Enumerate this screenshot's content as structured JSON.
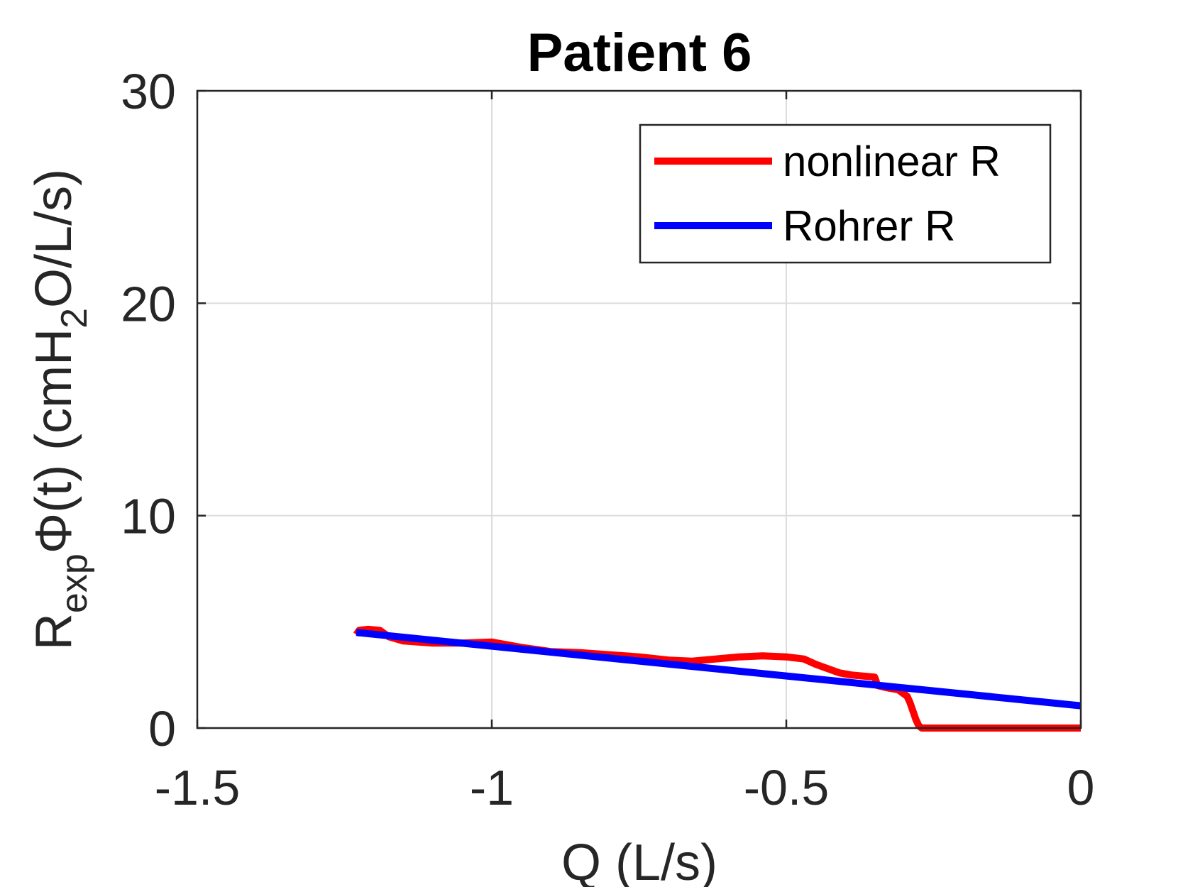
{
  "chart_data": {
    "type": "line",
    "title": "Patient 6",
    "xlabel": "Q (L/s)",
    "ylabel": {
      "base": "R",
      "base_sub": "exp",
      "phi": "Φ(t) (cmH",
      "phi_sub": "2",
      "tail": "O/L/s)"
    },
    "xlim": [
      -1.5,
      0
    ],
    "ylim": [
      0,
      30
    ],
    "xticks": [
      -1.5,
      -1,
      -0.5,
      0
    ],
    "xtick_labels": [
      "-1.5",
      "-1",
      "-0.5",
      "0"
    ],
    "yticks": [
      0,
      10,
      20,
      30
    ],
    "ytick_labels": [
      "0",
      "10",
      "20",
      "30"
    ],
    "grid": true,
    "legend_position": "top-right",
    "series": [
      {
        "name": "nonlinear R",
        "color": "#ff0000",
        "x": [
          -1.23,
          -1.225,
          -1.21,
          -1.19,
          -1.175,
          -1.15,
          -1.1,
          -1.05,
          -1.0,
          -0.95,
          -0.9,
          -0.85,
          -0.8,
          -0.75,
          -0.7,
          -0.66,
          -0.62,
          -0.58,
          -0.54,
          -0.5,
          -0.47,
          -0.45,
          -0.43,
          -0.41,
          -0.39,
          -0.37,
          -0.35,
          -0.345,
          -0.33,
          -0.31,
          -0.295,
          -0.29,
          -0.285,
          -0.28,
          -0.275,
          -0.27,
          -0.2,
          -0.1,
          0.0
        ],
        "y": [
          4.4,
          4.6,
          4.65,
          4.6,
          4.3,
          4.1,
          4.0,
          4.0,
          4.05,
          3.8,
          3.6,
          3.55,
          3.45,
          3.35,
          3.2,
          3.15,
          3.25,
          3.35,
          3.4,
          3.35,
          3.25,
          3.0,
          2.8,
          2.6,
          2.5,
          2.45,
          2.4,
          2.0,
          1.9,
          1.8,
          1.5,
          1.2,
          0.8,
          0.4,
          0.1,
          0.0,
          0.0,
          0.0,
          0.0
        ]
      },
      {
        "name": "Rohrer R",
        "color": "#0000ff",
        "x": [
          -1.23,
          0.0
        ],
        "y": [
          4.5,
          1.05
        ]
      }
    ]
  }
}
